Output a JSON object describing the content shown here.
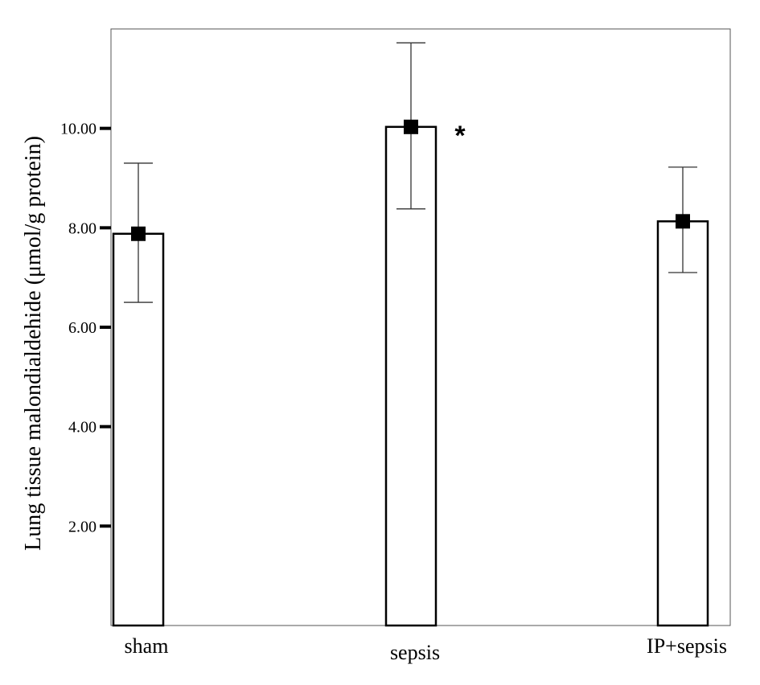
{
  "chart_data": {
    "type": "bar",
    "categories": [
      "sham",
      "sepsis",
      "IP+sepsis"
    ],
    "values": [
      7.88,
      10.03,
      8.13
    ],
    "error_low": [
      6.5,
      8.38,
      7.1
    ],
    "error_high": [
      9.3,
      11.72,
      9.22
    ],
    "ylabel": "Lung tissue malondialdehide (μmol/g protein)",
    "xlabel": "",
    "ylim": [
      0,
      12
    ],
    "yticks": [
      2,
      4,
      6,
      8,
      10
    ],
    "ytick_labels": [
      "2.00",
      "4.00",
      "6.00",
      "8.00",
      "10.00"
    ],
    "annotations": [
      {
        "category": "sepsis",
        "text": "*"
      }
    ],
    "grid": false,
    "bar_color": "#ffffff",
    "marker_color": "#000000"
  }
}
